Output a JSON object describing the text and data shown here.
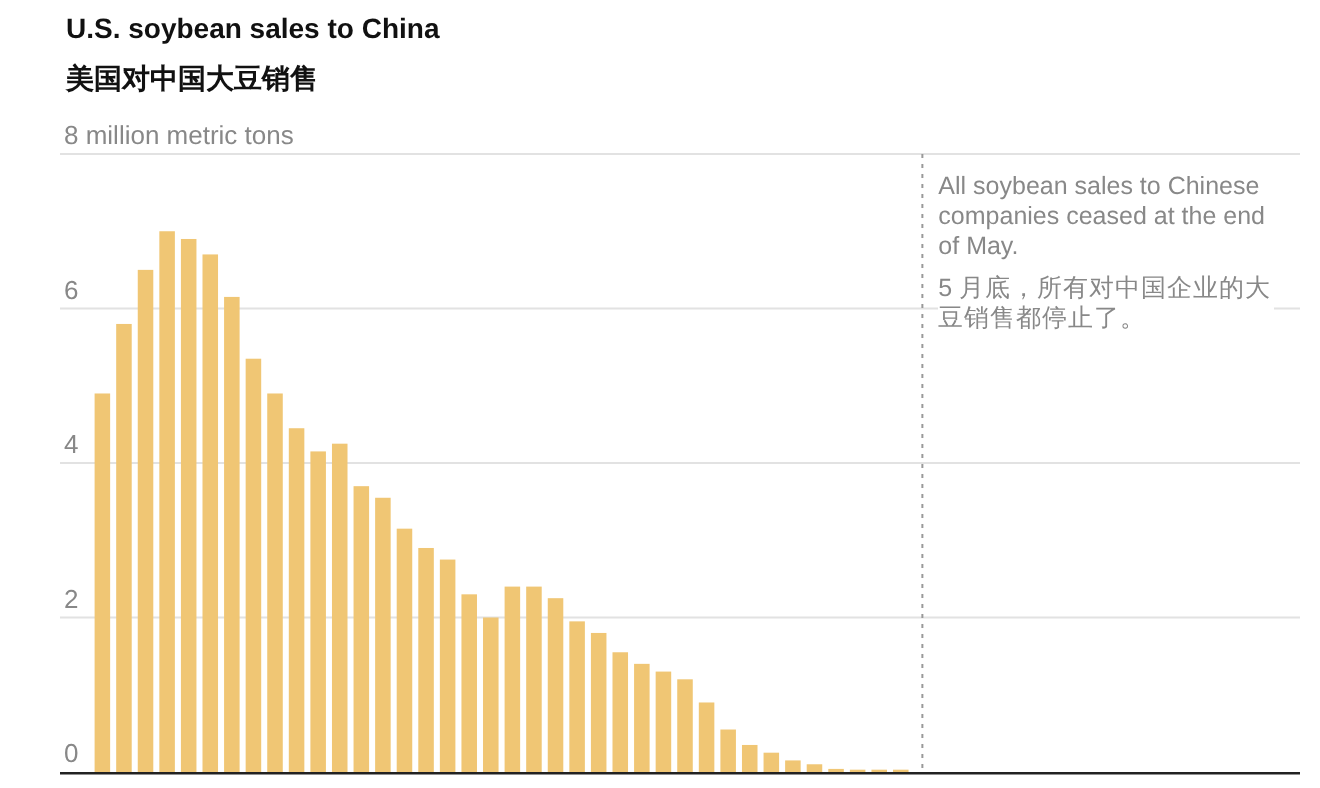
{
  "chart_data": {
    "type": "bar",
    "title": "U.S. soybean sales to China",
    "subtitle": "美国对中国大豆销售",
    "categories": [
      null,
      null,
      null,
      null,
      null,
      null,
      null,
      null,
      null,
      null,
      null,
      null,
      null,
      null,
      null,
      null,
      null,
      null,
      null,
      null,
      null,
      null,
      null,
      null,
      null,
      null,
      null,
      null,
      null,
      null,
      null,
      null,
      null,
      null,
      null,
      null,
      null,
      null,
      null,
      null,
      null,
      null,
      null,
      null,
      null,
      null,
      null,
      null,
      null,
      null,
      null,
      null,
      null,
      null,
      null,
      null,
      null
    ],
    "values": [
      null,
      4.9,
      5.8,
      6.5,
      7.0,
      6.9,
      6.7,
      6.15,
      5.35,
      4.9,
      4.45,
      4.15,
      4.25,
      3.7,
      3.55,
      3.15,
      2.9,
      2.75,
      2.3,
      2.0,
      2.4,
      2.4,
      2.25,
      1.95,
      1.8,
      1.55,
      1.4,
      1.3,
      1.2,
      0.9,
      0.55,
      0.35,
      0.25,
      0.15,
      0.1,
      0.04,
      0.03,
      0.03,
      0.03,
      null,
      null,
      null,
      null,
      null,
      null,
      null,
      null,
      null,
      null,
      null,
      null,
      null,
      null,
      null,
      null,
      null,
      null
    ],
    "color": "#f0c674",
    "ylim": [
      0,
      8
    ],
    "yticks": [
      0,
      2,
      4,
      6,
      {
        "value": 8,
        "label": "8 million metric tons"
      }
    ],
    "grid": "y",
    "annotations": [
      "All soybean sales to Chinese companies ceased at the end of May.",
      "5 月底，所有对中国企业的大豆销售都停止了。"
    ]
  }
}
